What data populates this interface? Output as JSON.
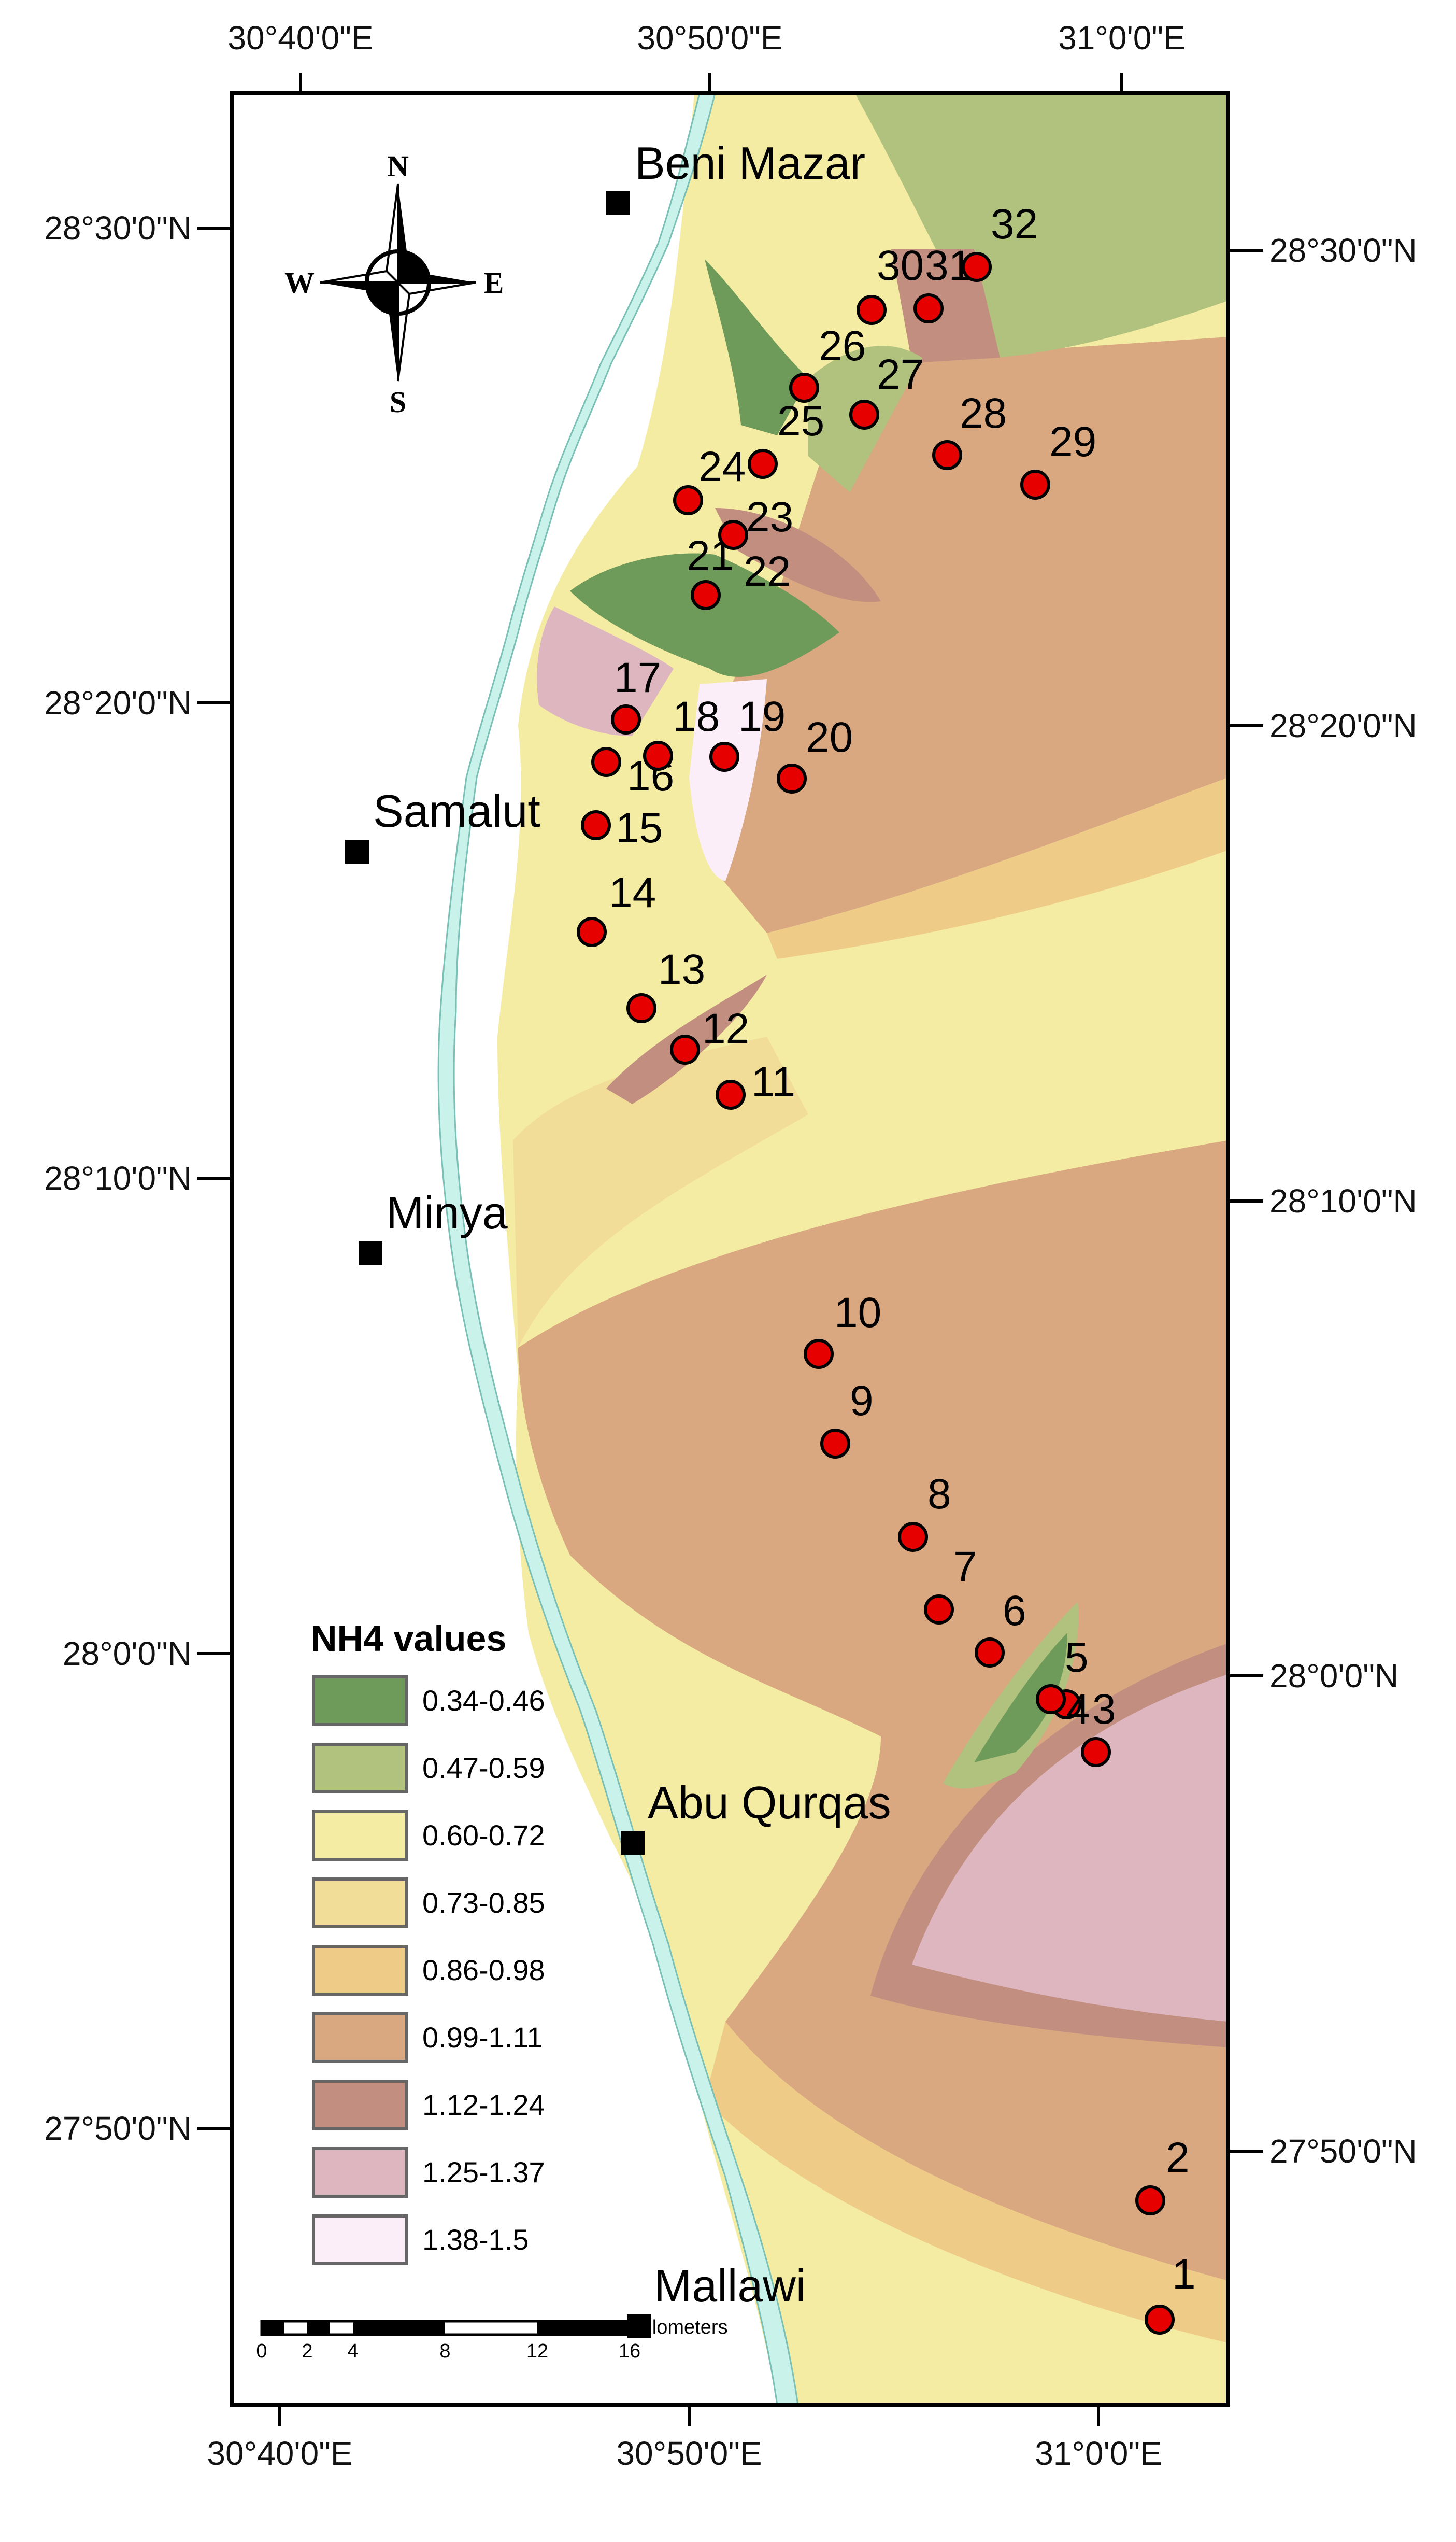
{
  "axes": {
    "top_lon": [
      "30°40'0\"E",
      "30°50'0\"E",
      "31°0'0\"E"
    ],
    "bottom_lon": [
      "30°40'0\"E",
      "30°50'0\"E",
      "31°0'0\"E"
    ],
    "left_lat": [
      "28°30'0\"N",
      "28°20'0\"N",
      "28°10'0\"N",
      "28°0'0\"N",
      "27°50'0\"N"
    ],
    "right_lat": [
      "28°30'0\"N",
      "28°20'0\"N",
      "28°10'0\"N",
      "28°0'0\"N",
      "27°50'0\"N"
    ]
  },
  "towns": [
    "Beni Mazar",
    "Samalut",
    "Minya",
    "Abu Qurqas",
    "Mallawi"
  ],
  "compass": {
    "n": "N",
    "s": "S",
    "e": "E",
    "w": "W"
  },
  "legend": {
    "title": "NH4 values",
    "classes": [
      {
        "label": "0.34-0.46",
        "color": "#6e9a5a"
      },
      {
        "label": "0.47-0.59",
        "color": "#b0c27e"
      },
      {
        "label": "0.60-0.72",
        "color": "#f4eca2"
      },
      {
        "label": "0.73-0.85",
        "color": "#f1dd98"
      },
      {
        "label": "0.86-0.98",
        "color": "#efcb88"
      },
      {
        "label": "0.99-1.11",
        "color": "#d9a780"
      },
      {
        "label": "1.12-1.24",
        "color": "#c28e80"
      },
      {
        "label": "1.25-1.37",
        "color": "#deb6c0"
      },
      {
        "label": "1.38-1.5",
        "color": "#fbeef8"
      }
    ]
  },
  "scalebar": {
    "ticks": [
      "0",
      "2",
      "4",
      "8",
      "12",
      "16"
    ],
    "unit": "Kilometers"
  },
  "stations": [
    "1",
    "2",
    "3",
    "4",
    "5",
    "6",
    "7",
    "8",
    "9",
    "10",
    "11",
    "12",
    "13",
    "14",
    "15",
    "16",
    "17",
    "18",
    "19",
    "20",
    "21",
    "22",
    "23",
    "24",
    "25",
    "26",
    "27",
    "28",
    "29",
    "30",
    "31",
    "32"
  ],
  "station_color": "#e60000",
  "river_color": "#c9f2ea"
}
